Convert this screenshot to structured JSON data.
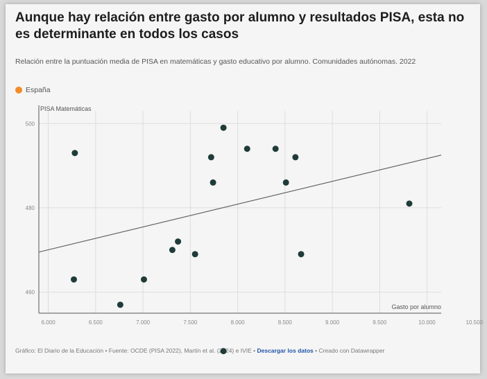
{
  "title": "Aunque hay relación entre gasto por alumno y resultados PISA, esta no es determinante en todos los casos",
  "subtitle": "Relación entre la puntuación media de PISA en matemáticas y gasto educativo por alumno. Comunidades autónomas. 2022",
  "legend_label": "España",
  "colors": {
    "points": "#1f3b3a",
    "spain": "#f28c28",
    "trend": "#666666",
    "grid": "#dddddd"
  },
  "footer": {
    "text": "Gráfico: El Diario de la Educación • Fuente: OCDE (PISA 2022), Martín et al. (2024) e IVIE •",
    "link": "Descargar los datos",
    "created": "• Creado con Datawrapper"
  },
  "chart_data": {
    "type": "scatter",
    "ylabel": "PISA Matemáticas",
    "xlabel": "Gasto por alumno",
    "xlim": [
      5900,
      10150
    ],
    "ylim": [
      455,
      503
    ],
    "y_ticks": [
      {
        "value": 500,
        "label": "500"
      },
      {
        "value": 480,
        "label": "480"
      },
      {
        "value": 460,
        "label": "460"
      }
    ],
    "x_ticks": [
      {
        "value": 6000,
        "label": "6.000"
      },
      {
        "value": 6500,
        "label": "6.500"
      },
      {
        "value": 7000,
        "label": "7.000"
      },
      {
        "value": 7500,
        "label": "7.500"
      },
      {
        "value": 8000,
        "label": "8.000"
      },
      {
        "value": 8500,
        "label": "8.500"
      },
      {
        "value": 9000,
        "label": "9.000"
      },
      {
        "value": 9500,
        "label": "9.500"
      },
      {
        "value": 10000,
        "label": "10.000"
      },
      {
        "value": 10500,
        "label": "10.500"
      }
    ],
    "points": [
      {
        "x": 6280,
        "y": 493
      },
      {
        "x": 6270,
        "y": 463
      },
      {
        "x": 6760,
        "y": 457
      },
      {
        "x": 7010,
        "y": 463
      },
      {
        "x": 7310,
        "y": 470
      },
      {
        "x": 7370,
        "y": 472
      },
      {
        "x": 7550,
        "y": 469
      },
      {
        "x": 7720,
        "y": 492
      },
      {
        "x": 7740,
        "y": 486
      },
      {
        "x": 7850,
        "y": 499
      },
      {
        "x": 8100,
        "y": 494
      },
      {
        "x": 8400,
        "y": 494
      },
      {
        "x": 8510,
        "y": 486
      },
      {
        "x": 8610,
        "y": 492
      },
      {
        "x": 8670,
        "y": 469
      },
      {
        "x": 10250,
        "y": 481
      },
      {
        "x": 7850,
        "y": 446
      }
    ],
    "trendline": {
      "x0": 5900,
      "y0": 469.5,
      "x1": 10150,
      "y1": 492.5
    },
    "grid": true
  }
}
